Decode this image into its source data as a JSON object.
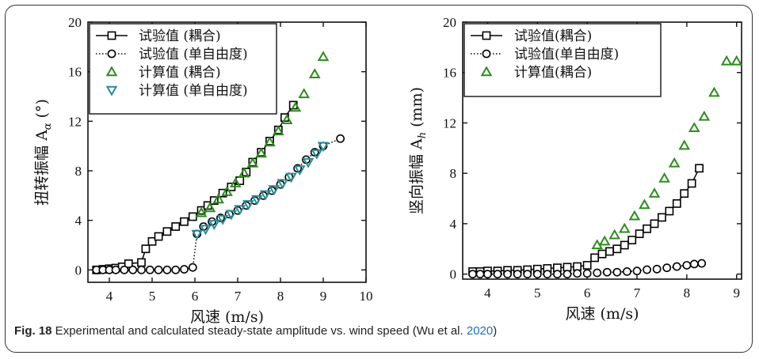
{
  "caption": {
    "label": "Fig. 18",
    "text_before": " Experimental and calculated steady-state amplitude vs. wind speed (Wu et al. ",
    "year": "2020",
    "text_after": ")"
  },
  "chart_data": [
    {
      "type": "scatter",
      "xlabel": "风速 (m/s)",
      "ylabel": "扭转振幅 A",
      "ylabel_subscript": "α",
      "ylabel_unit": "(°)",
      "xlim": [
        3.5,
        10
      ],
      "ylim": [
        -1,
        20
      ],
      "xticks": [
        4,
        5,
        6,
        7,
        8,
        9,
        10
      ],
      "yticks": [
        0,
        4,
        8,
        12,
        16,
        20
      ],
      "grid": false,
      "legend_position": "top-left",
      "series": [
        {
          "name": "试验值 (耦合)",
          "marker": "square",
          "line": "solid",
          "color": "#000000",
          "x": [
            3.7,
            3.85,
            4.0,
            4.15,
            4.3,
            4.45,
            4.75,
            4.85,
            5.0,
            5.15,
            5.35,
            5.55,
            5.75,
            5.95,
            6.15,
            6.3,
            6.45,
            6.65,
            6.85,
            7.05,
            7.2,
            7.35,
            7.55,
            7.75,
            7.95,
            8.1,
            8.3
          ],
          "y": [
            0.0,
            0.05,
            0.1,
            0.15,
            0.25,
            0.5,
            0.6,
            1.7,
            2.3,
            2.7,
            3.1,
            3.5,
            3.9,
            4.3,
            4.8,
            5.2,
            5.6,
            6.2,
            6.7,
            7.2,
            7.9,
            8.7,
            9.5,
            10.4,
            11.3,
            12.3,
            13.3
          ]
        },
        {
          "name": "试验值 (单自由度)",
          "marker": "circle",
          "line": "dotted",
          "color": "#000000",
          "x": [
            3.7,
            3.85,
            4.0,
            4.15,
            4.35,
            4.55,
            4.75,
            4.95,
            5.15,
            5.35,
            5.55,
            5.75,
            5.95,
            6.05,
            6.2,
            6.4,
            6.6,
            6.8,
            7.0,
            7.2,
            7.4,
            7.6,
            7.8,
            8.0,
            8.2,
            8.4,
            8.6,
            8.8,
            9.0,
            9.4
          ],
          "y": [
            0.0,
            0.0,
            0.0,
            0.0,
            0.0,
            0.0,
            0.0,
            0.0,
            0.0,
            0.0,
            0.0,
            0.05,
            0.2,
            2.9,
            3.5,
            3.9,
            4.2,
            4.5,
            4.8,
            5.2,
            5.6,
            6.0,
            6.4,
            6.9,
            7.5,
            8.2,
            8.9,
            9.5,
            10.0,
            10.6
          ]
        },
        {
          "name": "计算值 (耦合)",
          "marker": "triangle-up",
          "line": "none",
          "color": "#2e8b1e",
          "x": [
            6.15,
            6.35,
            6.55,
            6.75,
            6.95,
            7.15,
            7.35,
            7.55,
            7.75,
            7.95,
            8.15,
            8.35,
            8.55,
            8.8,
            9.0
          ],
          "y": [
            4.6,
            5.0,
            5.7,
            6.3,
            7.0,
            7.8,
            8.6,
            9.4,
            10.3,
            11.2,
            12.1,
            13.1,
            14.2,
            15.8,
            17.2
          ]
        },
        {
          "name": "计算值 (单自由度)",
          "marker": "triangle-down",
          "line": "none",
          "color": "#2b8a96",
          "x": [
            6.05,
            6.25,
            6.45,
            6.65,
            6.85,
            7.05,
            7.25,
            7.45,
            7.65,
            7.85,
            8.05,
            8.25,
            8.45,
            8.65,
            8.85,
            9.0
          ],
          "y": [
            2.9,
            3.3,
            3.7,
            4.1,
            4.5,
            4.9,
            5.3,
            5.7,
            6.1,
            6.5,
            7.0,
            7.5,
            8.1,
            8.7,
            9.4,
            10.0
          ]
        }
      ]
    },
    {
      "type": "scatter",
      "xlabel": "风速 (m/s)",
      "ylabel": "竖向振幅 A",
      "ylabel_subscript": "h",
      "ylabel_unit": "(mm)",
      "xlim": [
        3.5,
        9.1
      ],
      "ylim": [
        -0.4,
        20
      ],
      "xticks": [
        4,
        5,
        6,
        7,
        8,
        9
      ],
      "yticks": [
        0,
        4,
        8,
        12,
        16,
        20
      ],
      "grid": false,
      "legend_position": "top-left",
      "series": [
        {
          "name": "试验值(耦合)",
          "marker": "square",
          "line": "solid",
          "color": "#000000",
          "x": [
            3.7,
            3.85,
            4.0,
            4.2,
            4.4,
            4.6,
            4.8,
            5.0,
            5.2,
            5.4,
            5.6,
            5.8,
            6.0,
            6.15,
            6.3,
            6.45,
            6.6,
            6.75,
            6.9,
            7.05,
            7.2,
            7.35,
            7.5,
            7.65,
            7.8,
            7.95,
            8.1,
            8.25
          ],
          "y": [
            0.2,
            0.2,
            0.25,
            0.25,
            0.3,
            0.3,
            0.35,
            0.4,
            0.45,
            0.5,
            0.55,
            0.6,
            0.7,
            1.3,
            1.6,
            1.8,
            2.0,
            2.3,
            2.7,
            3.2,
            3.6,
            4.0,
            4.5,
            5.0,
            5.6,
            6.4,
            7.2,
            8.4
          ]
        },
        {
          "name": "试验值(单自由度)",
          "marker": "circle",
          "line": "dotted",
          "color": "#000000",
          "x": [
            3.7,
            3.85,
            4.0,
            4.2,
            4.4,
            4.6,
            4.8,
            5.0,
            5.2,
            5.4,
            5.6,
            5.8,
            6.0,
            6.2,
            6.4,
            6.6,
            6.8,
            7.0,
            7.2,
            7.4,
            7.6,
            7.8,
            8.0,
            8.15,
            8.3
          ],
          "y": [
            0.0,
            0.0,
            0.0,
            0.0,
            0.0,
            0.0,
            0.0,
            0.0,
            0.0,
            0.0,
            0.0,
            0.05,
            0.05,
            0.1,
            0.15,
            0.15,
            0.2,
            0.25,
            0.35,
            0.4,
            0.5,
            0.6,
            0.7,
            0.8,
            0.85
          ]
        },
        {
          "name": "计算值(耦合)",
          "marker": "triangle-up",
          "line": "none",
          "color": "#2e8b1e",
          "x": [
            6.2,
            6.35,
            6.55,
            6.75,
            6.95,
            7.15,
            7.35,
            7.55,
            7.75,
            7.95,
            8.15,
            8.35,
            8.55,
            8.8,
            9.0
          ],
          "y": [
            2.3,
            2.6,
            3.1,
            3.6,
            4.6,
            5.5,
            6.4,
            7.6,
            8.8,
            10.2,
            11.6,
            12.5,
            14.4,
            16.9,
            16.9
          ]
        }
      ]
    }
  ]
}
